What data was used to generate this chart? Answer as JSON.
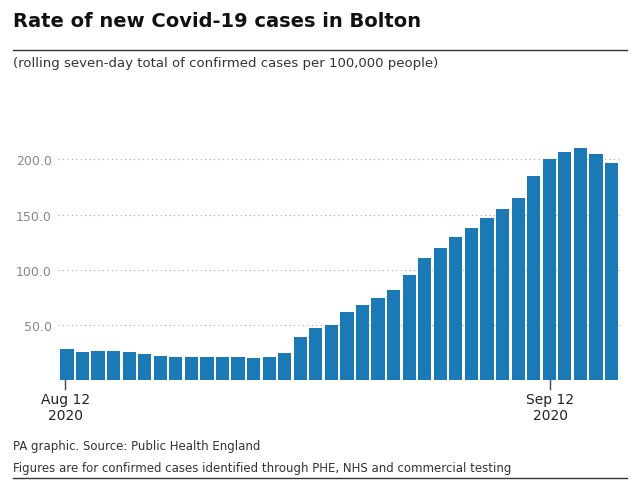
{
  "title": "Rate of new Covid-19 cases in Bolton",
  "subtitle": "(rolling seven-day total of confirmed cases per 100,000 people)",
  "bar_color": "#1b7ab5",
  "background_color": "#ffffff",
  "footer_line1": "PA graphic. Source: Public Health England",
  "footer_line2": "Figures are for confirmed cases identified through PHE, NHS and commercial testing",
  "xlabel_left": "Aug 12\n2020",
  "xlabel_right": "Sep 12\n2020",
  "ylim": [
    0,
    230
  ],
  "yticks": [
    50.0,
    100.0,
    150.0,
    200.0
  ],
  "values": [
    28,
    26,
    27,
    27,
    26,
    24,
    22,
    21,
    21,
    21,
    21,
    21,
    20,
    21,
    25,
    39,
    47,
    50,
    62,
    68,
    75,
    82,
    95,
    111,
    120,
    130,
    138,
    147,
    155,
    165,
    185,
    200,
    207,
    210,
    205,
    197
  ]
}
